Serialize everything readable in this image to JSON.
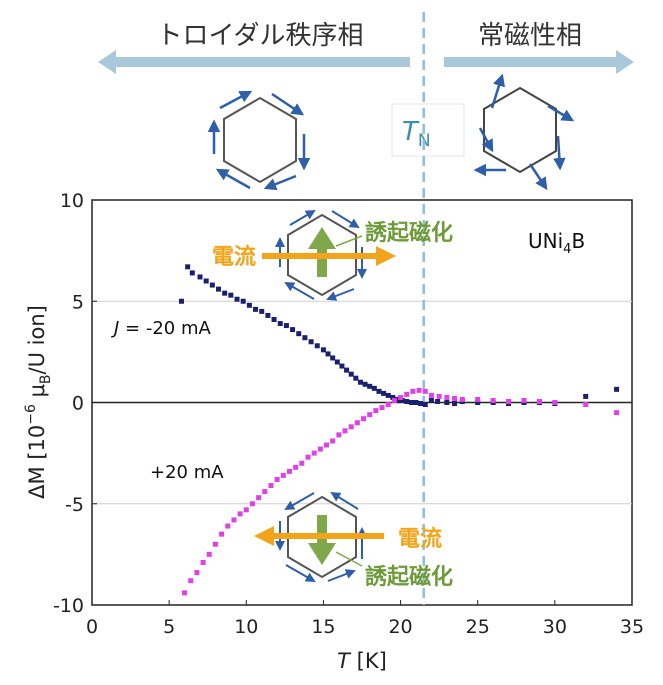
{
  "header": {
    "left_phase": "トロイダル秩序相",
    "right_phase": "常磁性相",
    "tn_label": "T",
    "tn_sub": "N"
  },
  "annotations": {
    "current_top": "電流",
    "induced_top": "誘起磁化",
    "current_bottom": "電流",
    "induced_bottom": "誘起磁化",
    "compound_pre": "UNi",
    "compound_sub": "4",
    "compound_post": "B",
    "neg_label_italic": "J",
    "neg_label_rest": " = -20 mA",
    "pos_label": "+20 mA"
  },
  "colors": {
    "neg_series": "#1a1f6e",
    "pos_series": "#e040e8",
    "arrow_band": "#a9c8dc",
    "dashed_line": "#8fbedb",
    "current_arrow": "#f2a51b",
    "induced_arrow": "#7fa84a",
    "spin_arrow": "#2e5fa8"
  },
  "chart_data": {
    "type": "scatter",
    "xlabel_italic": "T",
    "xlabel_rest": " [K]",
    "ylabel_pre": "ΔM",
    "ylabel_unit": "[10",
    "ylabel_exp": "−6",
    "ylabel_mu": " μ",
    "ylabel_musub": "B",
    "ylabel_post": "/U ion]",
    "xlim": [
      0,
      35
    ],
    "ylim": [
      -10,
      10
    ],
    "xticks": [
      "0",
      "5",
      "10",
      "15",
      "20",
      "25",
      "30",
      "35"
    ],
    "yticks": [
      "10",
      "5",
      "0",
      "-5",
      "-10"
    ],
    "tn": 21.5,
    "gridlines_y": [
      5,
      0,
      -5
    ],
    "series": [
      {
        "name": "J = -20 mA",
        "x": [
          5.8,
          6.2,
          6.5,
          7.0,
          7.4,
          7.8,
          8.2,
          8.6,
          9.0,
          9.4,
          9.8,
          10.2,
          10.6,
          11.0,
          11.4,
          11.8,
          12.2,
          12.6,
          13.0,
          13.4,
          13.8,
          14.2,
          14.6,
          15.0,
          15.3,
          15.6,
          15.9,
          16.2,
          16.5,
          16.8,
          17.1,
          17.4,
          17.7,
          18.0,
          18.3,
          18.6,
          18.9,
          19.2,
          19.5,
          19.8,
          20.1,
          20.4,
          20.7,
          21.0,
          21.3,
          21.6,
          22.0,
          22.4,
          23.0,
          23.5,
          24.0,
          25.0,
          26.0,
          27.0,
          28.0,
          29.0,
          30.0,
          32.0,
          34.0
        ],
        "y": [
          5.0,
          6.7,
          6.4,
          6.2,
          6.0,
          5.8,
          5.6,
          5.4,
          5.3,
          5.1,
          5.0,
          4.8,
          4.6,
          4.5,
          4.3,
          4.1,
          3.9,
          3.8,
          3.6,
          3.4,
          3.2,
          3.0,
          2.8,
          2.6,
          2.4,
          2.2,
          2.0,
          1.8,
          1.6,
          1.4,
          1.2,
          1.0,
          0.9,
          0.8,
          0.7,
          0.55,
          0.45,
          0.35,
          0.25,
          0.15,
          0.1,
          0.05,
          0.0,
          0.0,
          -0.05,
          -0.1,
          0.1,
          0.05,
          0.0,
          -0.05,
          0.05,
          0.0,
          0.0,
          -0.05,
          0.0,
          0.0,
          -0.05,
          0.3,
          0.65
        ]
      },
      {
        "name": "+20 mA",
        "x": [
          6.0,
          6.4,
          6.8,
          7.2,
          7.6,
          8.0,
          8.4,
          8.8,
          9.2,
          9.6,
          10.0,
          10.4,
          10.8,
          11.2,
          11.6,
          12.0,
          12.4,
          12.8,
          13.2,
          13.6,
          14.0,
          14.4,
          14.8,
          15.2,
          15.6,
          16.0,
          16.4,
          16.8,
          17.2,
          17.6,
          18.0,
          18.4,
          18.8,
          19.2,
          19.6,
          20.0,
          20.4,
          20.8,
          21.2,
          21.6,
          22.0,
          22.5,
          23.0,
          23.5,
          24.0,
          25.0,
          26.0,
          27.0,
          28.0,
          29.0,
          30.0,
          32.0,
          34.0
        ],
        "y": [
          -9.4,
          -8.8,
          -8.4,
          -7.9,
          -7.5,
          -7.0,
          -6.5,
          -6.1,
          -5.8,
          -5.5,
          -5.3,
          -5.0,
          -4.7,
          -4.4,
          -4.1,
          -3.8,
          -3.6,
          -3.4,
          -3.2,
          -3.0,
          -2.7,
          -2.5,
          -2.3,
          -2.1,
          -1.9,
          -1.6,
          -1.4,
          -1.2,
          -1.0,
          -0.8,
          -0.6,
          -0.4,
          -0.25,
          -0.1,
          0.1,
          0.25,
          0.4,
          0.55,
          0.6,
          0.55,
          0.35,
          0.3,
          0.25,
          0.2,
          0.15,
          0.15,
          0.1,
          0.05,
          0.1,
          0.05,
          0.0,
          -0.1,
          -0.5
        ]
      }
    ]
  }
}
